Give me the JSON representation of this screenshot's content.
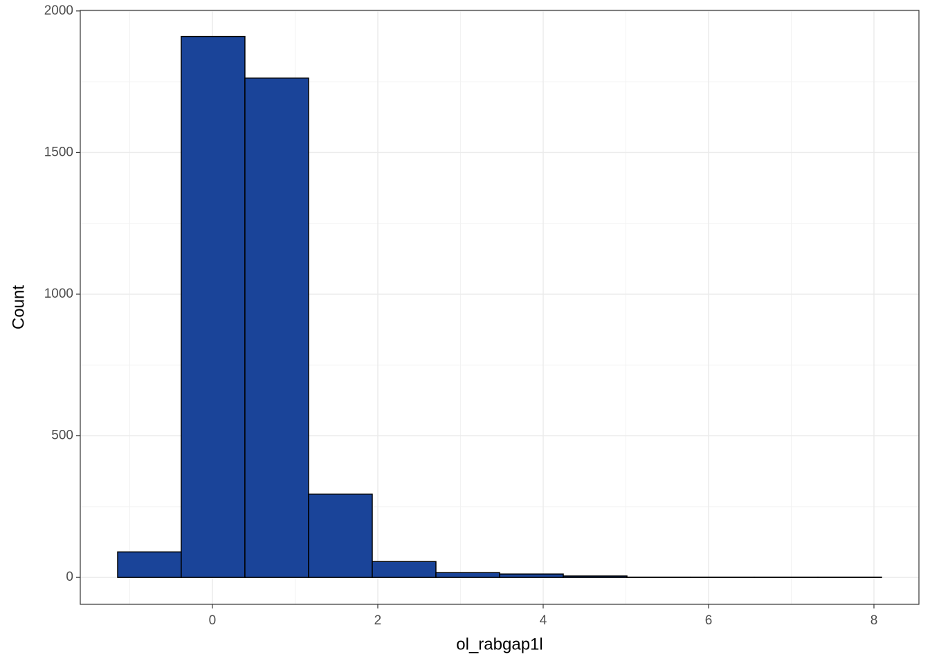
{
  "chart_data": {
    "type": "histogram",
    "x_label": "ol_rabgap1l",
    "y_label": "Count",
    "bins": [
      -1.146,
      -0.377,
      0.393,
      1.163,
      1.933,
      2.703,
      3.473,
      4.243,
      5.013,
      5.783,
      6.553,
      7.322,
      8.092
    ],
    "values": [
      90,
      1910,
      1763,
      294,
      56,
      17,
      12,
      5,
      1,
      1,
      1,
      1
    ],
    "color": "#1a4499",
    "xlim": [
      -1.598,
      8.544
    ],
    "ylim": [
      -95,
      2002
    ],
    "xticks": [
      0,
      2,
      4,
      6,
      8
    ],
    "yticks": [
      0,
      500,
      1000,
      1500,
      2000
    ],
    "grid": true
  }
}
